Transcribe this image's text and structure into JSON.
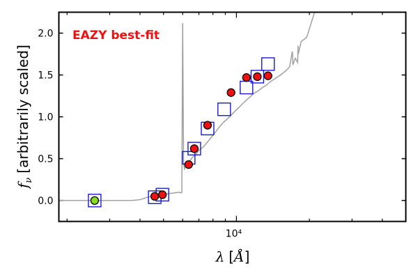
{
  "chart_data": {
    "type": "scatter",
    "annotation": "EAZY best-fit",
    "xlabel": "λ [Å]",
    "ylabel": "f_ν [arbitrarily scaled]",
    "x_scale": "log",
    "xlim": [
      1850,
      50000
    ],
    "ylim": [
      -0.25,
      2.25
    ],
    "x_ticks": [
      {
        "value": 10000,
        "label": "10⁴"
      }
    ],
    "y_ticks": [
      {
        "value": 0.0,
        "label": "0.0"
      },
      {
        "value": 0.5,
        "label": "0.5"
      },
      {
        "value": 1.0,
        "label": "1.0"
      },
      {
        "value": 1.5,
        "label": "1.5"
      },
      {
        "value": 2.0,
        "label": "2.0"
      }
    ],
    "grid": false,
    "colors": {
      "template": "#a0a0a0",
      "model": "#1a1adb",
      "observed": "#ee1111",
      "upper_limit": "#88dd22",
      "annotation": "#ee1111"
    },
    "series": [
      {
        "role": "template",
        "style": "line",
        "x": [
          1850,
          2300,
          2800,
          3300,
          3700,
          4000,
          4300,
          4600,
          4900,
          5200,
          5500,
          5800,
          5900,
          5950,
          6000,
          6050,
          6100,
          6200,
          6400,
          6600,
          6800,
          7000,
          7300,
          7600,
          8000,
          8400,
          8800,
          9300,
          9800,
          10300,
          10800,
          11300,
          11800,
          12300,
          12800,
          13300,
          13800,
          14500,
          15200,
          16000,
          16600,
          17000,
          17050,
          17100,
          17500,
          17900,
          17950,
          18000,
          18500,
          19500,
          20500,
          21000
        ],
        "y": [
          0.0,
          0.0,
          0.0,
          0.0,
          0.0,
          0.01,
          0.04,
          0.06,
          0.07,
          0.08,
          0.09,
          0.1,
          0.09,
          0.1,
          2.12,
          0.45,
          0.38,
          0.42,
          0.47,
          0.52,
          0.55,
          0.6,
          0.64,
          0.7,
          0.78,
          0.86,
          0.93,
          0.99,
          1.06,
          1.12,
          1.18,
          1.23,
          1.28,
          1.31,
          1.35,
          1.38,
          1.42,
          1.46,
          1.5,
          1.55,
          1.6,
          1.78,
          1.75,
          1.62,
          1.7,
          1.65,
          1.85,
          1.75,
          1.9,
          1.95,
          2.15,
          2.25
        ]
      },
      {
        "role": "model",
        "style": "open-square",
        "x": [
          2600,
          4600,
          4950,
          6350,
          6700,
          7600,
          8900,
          11000,
          12200,
          13500
        ],
        "y": [
          0.0,
          0.04,
          0.07,
          0.51,
          0.62,
          0.86,
          1.09,
          1.35,
          1.48,
          1.63
        ]
      },
      {
        "role": "observed",
        "style": "filled-circle",
        "x": [
          4600,
          4950,
          6350,
          6700,
          7600,
          9500,
          11000,
          12200,
          13500
        ],
        "y": [
          0.05,
          0.07,
          0.43,
          0.62,
          0.9,
          1.29,
          1.47,
          1.48,
          1.49
        ]
      },
      {
        "role": "upper_limit",
        "style": "filled-circle",
        "x": [
          2600
        ],
        "y": [
          0.0
        ]
      }
    ]
  }
}
